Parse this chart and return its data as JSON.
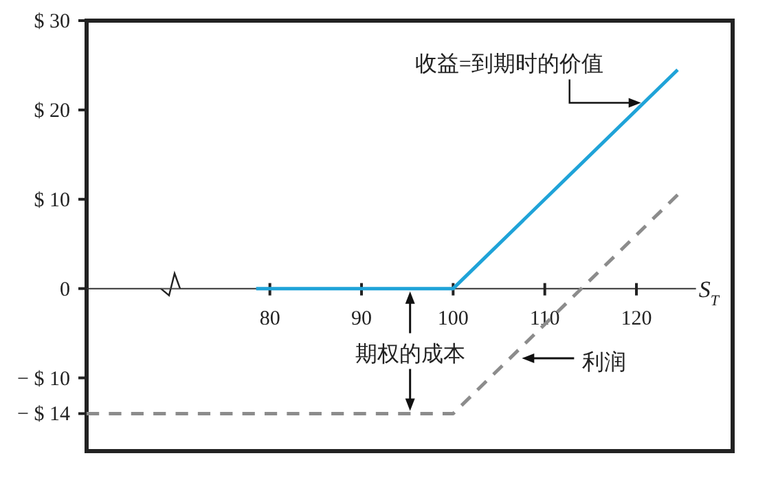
{
  "chart_data": {
    "type": "line",
    "xlabel": "S$_{T}$",
    "xlim": [
      60,
      130.5
    ],
    "ylim": [
      -18.2,
      30
    ],
    "xticks": [
      80,
      90,
      100,
      110,
      120
    ],
    "yticks": [
      {
        "value": 30,
        "label": "$ 30"
      },
      {
        "value": 20,
        "label": "$ 20"
      },
      {
        "value": 10,
        "label": "$ 10"
      },
      {
        "value": 0,
        "label": "0"
      },
      {
        "value": -10,
        "label": "− $ 10"
      },
      {
        "value": -14,
        "label": "− $ 14"
      }
    ],
    "series": [
      {
        "color": "#1fa3d8",
        "x": [
          78.5,
          100,
          124.5
        ],
        "values": [
          0,
          0,
          24.5
        ],
        "line_style": "solid"
      },
      {
        "color": "#8c8c8c",
        "x": [
          60,
          100,
          124.5
        ],
        "values": [
          -14,
          -14,
          10.5
        ],
        "line_style": "dashed"
      }
    ],
    "annotations": [
      {
        "text": "收益=到期时的价值",
        "x": 120.5,
        "y": 20.8
      },
      "期权的成本",
      {
        "text": "利润",
        "x": 107.5,
        "y": -7.8
      }
    ]
  }
}
